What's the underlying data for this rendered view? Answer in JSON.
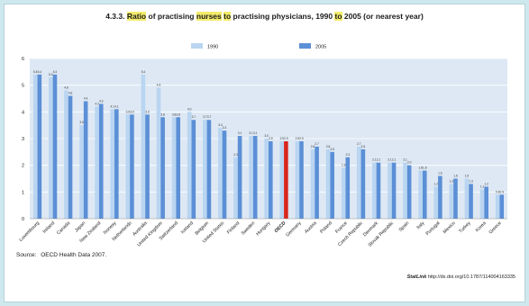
{
  "title": {
    "prefix": "4.3.3.",
    "part1": "Ratio",
    "part2": "of practising",
    "part3": "nurses",
    "part4": "to",
    "part5": "practising physicians, 1990",
    "part6": "to",
    "part7": "2005 (or nearest year)"
  },
  "source": {
    "label": "Source:",
    "text": "OECD Health Data 2007."
  },
  "statlink": {
    "label": "StatLink",
    "url": "http://dx.doi.org/10.1787/114004163335"
  },
  "chart_data": {
    "type": "bar",
    "title": "Ratio of practising nurses to practising physicians, 1990 to 2005 (or nearest year)",
    "ylim": [
      0,
      6
    ],
    "yticks": [
      0,
      1,
      2,
      3,
      4,
      5,
      6
    ],
    "grid": true,
    "legend_position": "top",
    "highlight_category": "OECD",
    "colors": {
      "1990": "#b9d5f1",
      "2005": "#5b8fd6",
      "oecd_2005": "#d9261c"
    },
    "categories": [
      "Luxembourg",
      "Ireland",
      "Canada",
      "Japan",
      "New Zealand",
      "Norway",
      "Netherlands",
      "Australia",
      "United Kingdom",
      "Switzerland",
      "Iceland",
      "Belgium",
      "United States",
      "Finland",
      "Sweden",
      "Hungary",
      "OECD",
      "Germany",
      "Austria",
      "Poland",
      "France",
      "Czech Republic",
      "Denmark",
      "Slovak Republic",
      "Spain",
      "Italy",
      "Portugal",
      "Mexico",
      "Turkey",
      "Korea",
      "Greece"
    ],
    "series": [
      {
        "name": "1990",
        "values": [
          5.4,
          5.3,
          4.8,
          3.5,
          4.2,
          4.1,
          3.9,
          5.4,
          4.9,
          3.8,
          4.0,
          3.7,
          3.4,
          2.3,
          3.1,
          3.0,
          2.9,
          2.9,
          2.6,
          2.6,
          1.9,
          2.7,
          2.1,
          2.1,
          2.1,
          1.8,
          1.2,
          1.3,
          1.5,
          1.1,
          0.9
        ]
      },
      {
        "name": "2005",
        "values": [
          5.4,
          5.4,
          4.6,
          4.4,
          4.3,
          4.1,
          3.9,
          3.9,
          3.8,
          3.8,
          3.7,
          3.7,
          3.3,
          3.1,
          3.1,
          2.9,
          2.9,
          2.9,
          2.7,
          2.5,
          2.3,
          2.6,
          2.1,
          2.1,
          2.0,
          1.8,
          1.6,
          1.5,
          1.3,
          1.2,
          0.9
        ]
      }
    ]
  }
}
